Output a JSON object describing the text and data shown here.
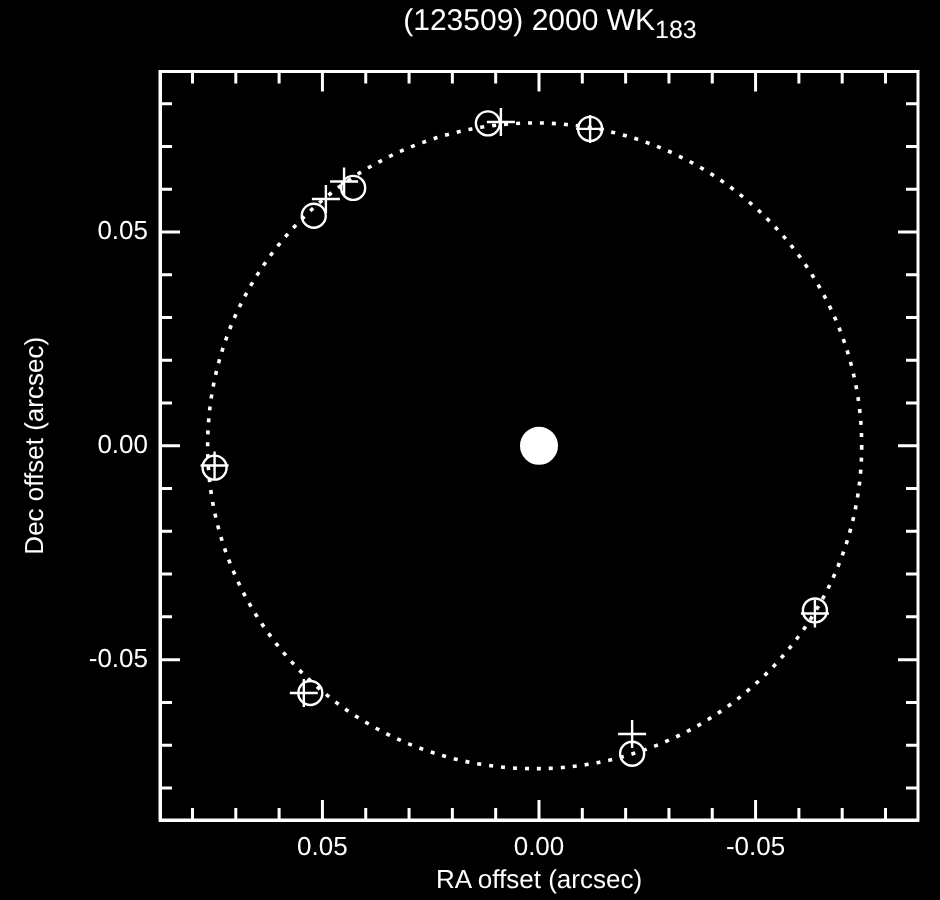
{
  "chart_data": {
    "type": "bubble",
    "title": "(123509) 2000 WK$_{183}$",
    "xlabel": "RA offset (arcsec)",
    "ylabel": "Dec offset (arcsec)",
    "xlim": [
      0.0875,
      -0.0875
    ],
    "ylim": [
      -0.0875,
      0.0875
    ],
    "xticks": [
      {
        "value": 0.08,
        "label": null
      },
      {
        "value": 0.07,
        "label": null
      },
      {
        "value": 0.06,
        "label": null
      },
      0.05,
      {
        "value": 0.04,
        "label": null
      },
      {
        "value": 0.03,
        "label": null
      },
      {
        "value": 0.02,
        "label": null
      },
      {
        "value": 0.01,
        "label": null
      },
      {
        "value": 0,
        "label": "0.00"
      },
      {
        "value": -0.01,
        "label": null
      },
      {
        "value": -0.02,
        "label": null
      },
      {
        "value": -0.03,
        "label": null
      },
      {
        "value": -0.04,
        "label": null
      },
      -0.05,
      {
        "value": -0.06,
        "label": null
      },
      {
        "value": -0.07,
        "label": null
      },
      {
        "value": -0.08,
        "label": null
      }
    ],
    "yticks": [
      {
        "value": -0.08,
        "label": null
      },
      {
        "value": -0.07,
        "label": null
      },
      {
        "value": -0.06,
        "label": null
      },
      -0.05,
      {
        "value": -0.04,
        "label": null
      },
      {
        "value": -0.03,
        "label": null
      },
      {
        "value": -0.02,
        "label": null
      },
      {
        "value": -0.01,
        "label": null
      },
      {
        "value": 0,
        "label": "0.00"
      },
      {
        "value": 0.01,
        "label": null
      },
      {
        "value": 0.02,
        "label": null
      },
      {
        "value": 0.03,
        "label": null
      },
      {
        "value": 0.04,
        "label": null
      },
      0.05,
      {
        "value": 0.06,
        "label": null
      },
      {
        "value": 0.07,
        "label": null
      },
      {
        "value": 0.08,
        "label": null
      }
    ],
    "grid": false,
    "legend": false,
    "series": [
      {
        "type": "scatter",
        "color": "#ffffff",
        "marker": "circle",
        "x": [
          0.0118,
          -0.0118,
          0.0429,
          0.052,
          0.0749,
          0.0528,
          -0.0215,
          -0.0637
        ],
        "values": [
          0.0754,
          0.0741,
          0.0603,
          0.0538,
          -0.0051,
          -0.0578,
          -0.072,
          -0.0385
        ]
      },
      {
        "type": "scatter",
        "color": "#ffffff",
        "marker": "cross",
        "x": [
          0.0088,
          -0.0118,
          0.045,
          0.0492,
          0.0749,
          0.0543,
          -0.0215,
          -0.0637
        ],
        "values": [
          0.0757,
          0.0741,
          0.0618,
          0.0577,
          -0.0046,
          -0.0578,
          -0.0674,
          -0.0392
        ]
      },
      {
        "color": "#ffffff",
        "x": [
          0
        ],
        "values": [
          0
        ],
        "sizes": [
          1
        ]
      }
    ]
  }
}
